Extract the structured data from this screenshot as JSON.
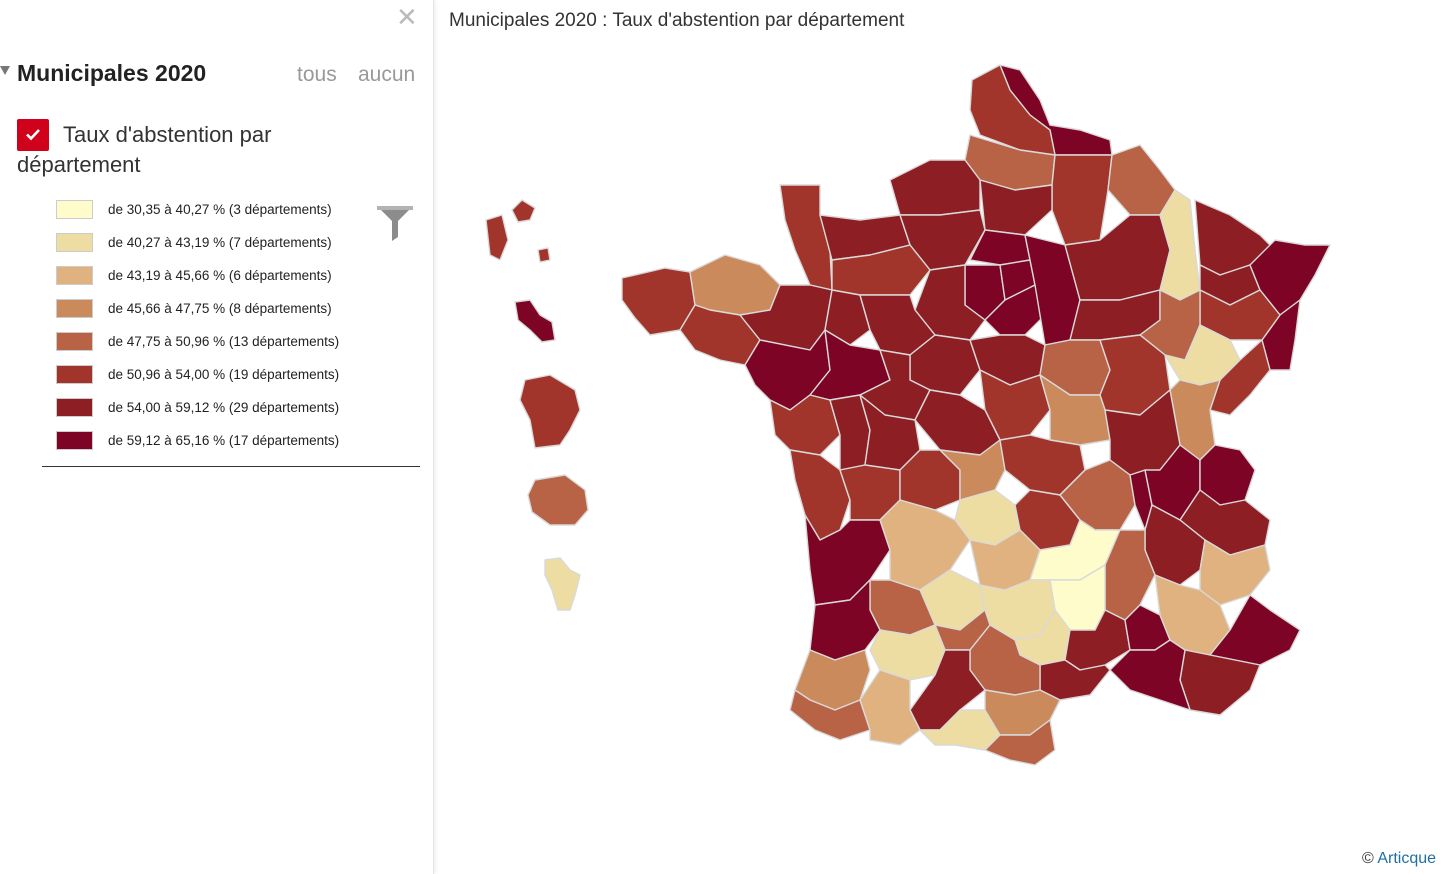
{
  "panel": {
    "close_icon": "close-icon",
    "group_title": "Municipales 2020",
    "all_label": "tous",
    "none_label": "aucun",
    "layer_title": "Taux d'abstention par département",
    "layer_checked": true,
    "legend": [
      {
        "label": "de 30,35 à 40,27 % (3 départements)",
        "color": "#fffccb"
      },
      {
        "label": "de 40,27 à 43,19 % (7 départements)",
        "color": "#eedda2"
      },
      {
        "label": "de 43,19 à 45,66 % (6 départements)",
        "color": "#dfb27f"
      },
      {
        "label": "de 45,66 à 47,75 % (8 départements)",
        "color": "#ca8a5c"
      },
      {
        "label": "de 47,75 à 50,96 % (13 départements)",
        "color": "#b86346"
      },
      {
        "label": "de 50,96 à 54,00 % (19 départements)",
        "color": "#a2352b"
      },
      {
        "label": "de 54,00 à 59,12 % (29 départements)",
        "color": "#8d1e24"
      },
      {
        "label": "de 59,12 à 65,16 % (17 départements)",
        "color": "#7e0425"
      }
    ],
    "filter_icon": "filter-icon"
  },
  "map": {
    "title": "Municipales 2020 : Taux d'abstention par département",
    "credit_symbol": "©",
    "credit_link": "Articque"
  }
}
